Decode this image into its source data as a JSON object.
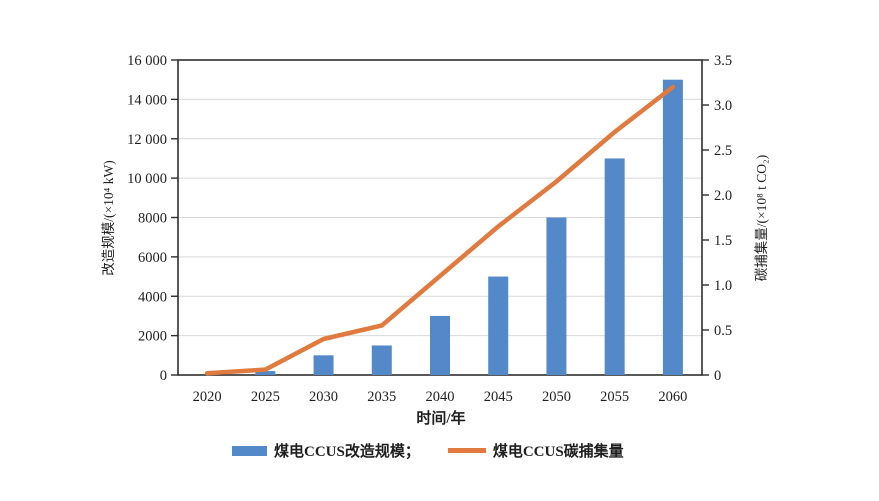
{
  "chart_data": {
    "type": "bar",
    "subtype": "bar-line-combo",
    "categories": [
      "2020",
      "2025",
      "2030",
      "2035",
      "2040",
      "2045",
      "2050",
      "2055",
      "2060"
    ],
    "series": [
      {
        "name": "煤电CCUS改造规模",
        "type": "bar",
        "axis": "left",
        "values": [
          0,
          200,
          1000,
          1500,
          3000,
          5000,
          8000,
          11000,
          15000
        ],
        "color": "#5389C8"
      },
      {
        "name": "煤电CCUS碳捕集量",
        "type": "line",
        "axis": "right",
        "values": [
          0.02,
          0.06,
          0.4,
          0.55,
          1.1,
          1.65,
          2.15,
          2.7,
          3.2
        ],
        "color": "#E07A3E"
      }
    ],
    "left_axis": {
      "title": "改造规模/(×10⁴ kW)",
      "min": 0,
      "max": 16000,
      "tick_step": 2000,
      "tick_labels": [
        "0",
        "2000",
        "4000",
        "6000",
        "8000",
        "10 000",
        "12 000",
        "14 000",
        "16 000"
      ]
    },
    "right_axis": {
      "title": "碳捕集量/(×10⁸ t CO₂)",
      "min": 0,
      "max": 3.5,
      "tick_step": 0.5,
      "tick_labels": [
        "0",
        "0.5",
        "1.0",
        "1.5",
        "2.0",
        "2.5",
        "3.0",
        "3.5"
      ]
    },
    "x_axis": {
      "title": "时间/年"
    },
    "grid": "horizontal",
    "legend_position": "bottom"
  },
  "legend": {
    "bar_label": "煤电CCUS改造规模；",
    "line_label": "煤电CCUS碳捕集量"
  },
  "colors": {
    "bar": "#5389C8",
    "line": "#E07A3E",
    "gridline": "#D9D9D9",
    "axis": "#2E2E2E",
    "text": "#1F1F1F",
    "background": "#FFFFFF"
  }
}
